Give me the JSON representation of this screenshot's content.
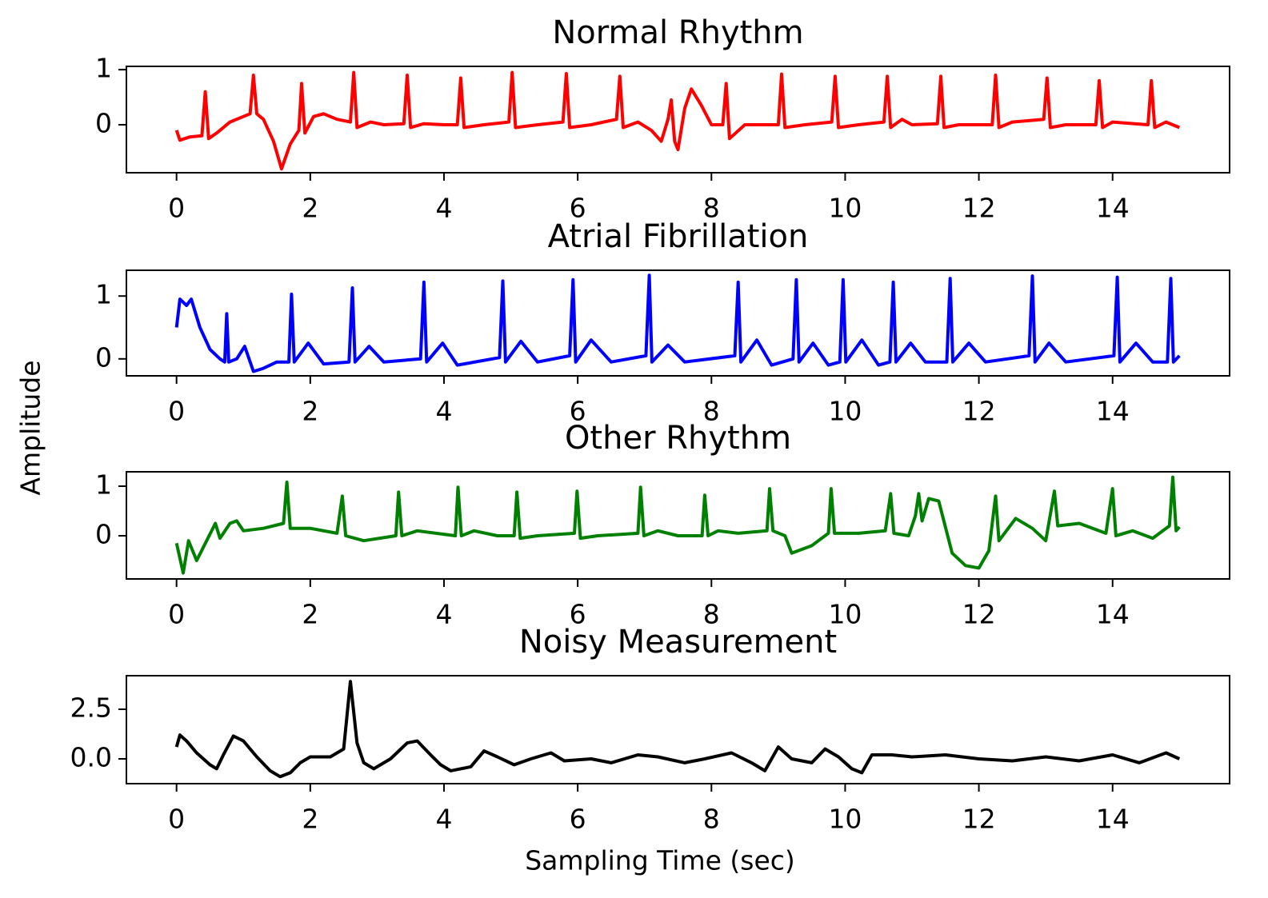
{
  "chart_data": [
    {
      "type": "line",
      "title": "Normal Rhythm",
      "x": [
        0,
        0.05,
        0.2,
        0.38,
        0.43,
        0.48,
        0.6,
        0.8,
        1.0,
        1.1,
        1.15,
        1.2,
        1.3,
        1.45,
        1.57,
        1.7,
        1.83,
        1.87,
        1.92,
        2.05,
        2.2,
        2.4,
        2.6,
        2.65,
        2.7,
        2.9,
        3.1,
        3.4,
        3.45,
        3.5,
        3.7,
        4.0,
        4.2,
        4.25,
        4.3,
        4.6,
        4.97,
        5.02,
        5.07,
        5.4,
        5.78,
        5.83,
        5.88,
        6.2,
        6.58,
        6.63,
        6.68,
        6.9,
        7.1,
        7.25,
        7.35,
        7.4,
        7.45,
        7.5,
        7.6,
        7.7,
        7.85,
        8.0,
        8.17,
        8.22,
        8.27,
        8.5,
        9.0,
        9.05,
        9.1,
        9.4,
        9.8,
        9.85,
        9.9,
        10.2,
        10.58,
        10.63,
        10.68,
        10.85,
        11.0,
        11.38,
        11.43,
        11.48,
        11.7,
        12.2,
        12.25,
        12.3,
        12.5,
        12.97,
        13.02,
        13.07,
        13.3,
        13.75,
        13.8,
        13.85,
        14.0,
        14.53,
        14.58,
        14.63,
        14.8,
        15.0
      ],
      "series": [
        {
          "color": "#ff0000",
          "values": [
            -0.1,
            -0.28,
            -0.22,
            -0.2,
            0.6,
            -0.25,
            -0.15,
            0.05,
            0.15,
            0.2,
            0.9,
            0.2,
            0.1,
            -0.3,
            -0.8,
            -0.35,
            -0.1,
            0.75,
            -0.15,
            0.15,
            0.2,
            0.1,
            0.05,
            0.95,
            -0.05,
            0.05,
            0,
            0.02,
            0.9,
            -0.05,
            0.02,
            0,
            0,
            0.85,
            -0.05,
            0,
            0.05,
            0.95,
            -0.05,
            0,
            0.05,
            0.93,
            -0.05,
            0,
            0.1,
            0.88,
            -0.05,
            0.05,
            -0.1,
            -0.3,
            0.1,
            0.45,
            -0.3,
            -0.45,
            0.3,
            0.65,
            0.35,
            0,
            0,
            0.75,
            -0.25,
            0,
            0,
            0.92,
            -0.05,
            0,
            0.05,
            0.88,
            -0.05,
            0,
            0.05,
            0.88,
            -0.05,
            0.1,
            0,
            0.02,
            0.88,
            -0.05,
            0,
            0,
            0.9,
            -0.05,
            0.05,
            0.1,
            0.85,
            -0.05,
            0,
            0,
            0.8,
            -0.05,
            0.05,
            0,
            0.8,
            -0.05,
            0.05,
            -0.05
          ]
        }
      ],
      "xlim": [
        -0.75,
        15.75
      ],
      "xticks": [
        0,
        2,
        4,
        6,
        8,
        10,
        12,
        14
      ],
      "ylim": [
        -0.87,
        1.06
      ],
      "yticks": [
        0,
        1
      ]
    },
    {
      "type": "line",
      "title": "Atrial Fibrillation",
      "x": [
        0,
        0.05,
        0.15,
        0.22,
        0.35,
        0.5,
        0.65,
        0.72,
        0.75,
        0.78,
        0.9,
        1.02,
        1.15,
        1.3,
        1.5,
        1.68,
        1.72,
        1.76,
        1.97,
        2.2,
        2.58,
        2.63,
        2.67,
        2.88,
        3.1,
        3.65,
        3.7,
        3.74,
        3.98,
        4.2,
        4.83,
        4.88,
        4.92,
        5.15,
        5.4,
        5.88,
        5.93,
        5.97,
        6.2,
        6.5,
        7.02,
        7.07,
        7.11,
        7.35,
        7.6,
        8.35,
        8.4,
        8.44,
        8.68,
        8.9,
        9.22,
        9.27,
        9.31,
        9.52,
        9.75,
        9.92,
        9.97,
        10.01,
        10.25,
        10.5,
        10.67,
        10.72,
        10.76,
        10.98,
        11.2,
        11.52,
        11.57,
        11.61,
        11.85,
        12.1,
        12.75,
        12.8,
        12.84,
        13.05,
        13.3,
        14.02,
        14.07,
        14.11,
        14.35,
        14.6,
        14.82,
        14.87,
        14.91,
        15.0
      ],
      "series": [
        {
          "color": "#0000ff",
          "values": [
            0.5,
            0.95,
            0.85,
            0.95,
            0.5,
            0.15,
            0.0,
            -0.05,
            0.72,
            -0.05,
            0.0,
            0.2,
            -0.2,
            -0.15,
            -0.05,
            -0.05,
            1.03,
            -0.05,
            0.25,
            -0.08,
            -0.05,
            1.13,
            -0.05,
            0.2,
            -0.05,
            0.0,
            1.22,
            -0.05,
            0.25,
            -0.1,
            0.02,
            1.24,
            -0.05,
            0.28,
            -0.05,
            0.05,
            1.26,
            -0.05,
            0.3,
            -0.05,
            0.05,
            1.33,
            -0.05,
            0.22,
            -0.05,
            0.05,
            1.22,
            -0.05,
            0.3,
            -0.1,
            0.0,
            1.26,
            -0.05,
            0.25,
            -0.1,
            -0.05,
            1.26,
            -0.05,
            0.3,
            -0.1,
            -0.05,
            1.22,
            -0.05,
            0.25,
            -0.05,
            -0.05,
            1.28,
            -0.05,
            0.25,
            -0.05,
            0.05,
            1.32,
            -0.05,
            0.25,
            -0.05,
            0.05,
            1.3,
            -0.05,
            0.25,
            -0.05,
            -0.05,
            1.28,
            -0.05,
            0.05
          ]
        }
      ],
      "xlim": [
        -0.75,
        15.75
      ],
      "xticks": [
        0,
        2,
        4,
        6,
        8,
        10,
        12,
        14
      ],
      "ylim": [
        -0.27,
        1.41
      ],
      "yticks": [
        0,
        1
      ]
    },
    {
      "type": "line",
      "title": "Other Rhythm",
      "x": [
        0,
        0.1,
        0.18,
        0.3,
        0.45,
        0.58,
        0.65,
        0.8,
        0.9,
        1.0,
        1.3,
        1.6,
        1.65,
        1.7,
        2.0,
        2.4,
        2.48,
        2.53,
        2.8,
        3.28,
        3.32,
        3.37,
        3.6,
        4.17,
        4.21,
        4.26,
        4.45,
        4.8,
        5.05,
        5.09,
        5.14,
        5.4,
        5.95,
        5.99,
        6.04,
        6.3,
        6.9,
        6.94,
        6.99,
        7.2,
        7.5,
        7.86,
        7.9,
        7.95,
        8.1,
        8.4,
        8.83,
        8.87,
        8.92,
        9.1,
        9.2,
        9.5,
        9.75,
        9.79,
        9.84,
        10.2,
        10.6,
        10.68,
        10.73,
        10.95,
        11.05,
        11.1,
        11.15,
        11.25,
        11.4,
        11.6,
        11.8,
        12.0,
        12.15,
        12.25,
        12.3,
        12.55,
        12.8,
        13.0,
        13.13,
        13.18,
        13.5,
        13.9,
        14.0,
        14.05,
        14.3,
        14.6,
        14.85,
        14.9,
        14.95,
        15.0
      ],
      "series": [
        {
          "color": "#008000",
          "values": [
            -0.15,
            -0.75,
            -0.1,
            -0.5,
            -0.1,
            0.25,
            -0.05,
            0.25,
            0.3,
            0.1,
            0.15,
            0.25,
            1.08,
            0.15,
            0.15,
            0.05,
            0.8,
            0,
            -0.1,
            0,
            0.88,
            0,
            0.1,
            0,
            0.98,
            0,
            0.1,
            0,
            0,
            0.88,
            -0.05,
            0,
            0.05,
            0.9,
            -0.05,
            0,
            0.05,
            0.98,
            0,
            0.1,
            0,
            0,
            0.82,
            0,
            0.1,
            0.05,
            0.1,
            0.95,
            0.1,
            0,
            -0.35,
            -0.2,
            0.05,
            0.95,
            0.05,
            0.05,
            0.1,
            0.85,
            0.05,
            0,
            0.4,
            0.85,
            0.3,
            0.75,
            0.7,
            -0.35,
            -0.6,
            -0.65,
            -0.3,
            0.8,
            -0.1,
            0.35,
            0.15,
            -0.1,
            0.9,
            0.2,
            0.25,
            0.05,
            0.95,
            0,
            0.1,
            -0.05,
            0.2,
            1.18,
            0.1,
            0.18
          ]
        }
      ],
      "xlim": [
        -0.75,
        15.75
      ],
      "xticks": [
        0,
        2,
        4,
        6,
        8,
        10,
        12,
        14
      ],
      "ylim": [
        -0.87,
        1.29
      ],
      "yticks": [
        0,
        1
      ]
    },
    {
      "type": "line",
      "title": "Noisy Measurement",
      "x": [
        0,
        0.05,
        0.15,
        0.3,
        0.5,
        0.6,
        0.7,
        0.85,
        1.0,
        1.2,
        1.4,
        1.55,
        1.7,
        1.85,
        2.0,
        2.3,
        2.5,
        2.6,
        2.7,
        2.8,
        2.95,
        3.2,
        3.45,
        3.6,
        3.8,
        3.95,
        4.1,
        4.4,
        4.6,
        4.8,
        5.05,
        5.3,
        5.6,
        5.8,
        6.2,
        6.5,
        6.9,
        7.2,
        7.6,
        7.9,
        8.3,
        8.6,
        8.8,
        9.0,
        9.2,
        9.5,
        9.7,
        9.9,
        10.1,
        10.25,
        10.4,
        10.7,
        11.0,
        11.5,
        12.0,
        12.5,
        13.0,
        13.5,
        14.0,
        14.4,
        14.8,
        15.0
      ],
      "series": [
        {
          "color": "#000000",
          "values": [
            0.6,
            1.2,
            0.9,
            0.3,
            -0.3,
            -0.5,
            0.2,
            1.15,
            0.9,
            0.1,
            -0.6,
            -0.9,
            -0.7,
            -0.2,
            0.1,
            0.1,
            0.5,
            3.9,
            0.8,
            -0.2,
            -0.5,
            0,
            0.8,
            0.9,
            0.2,
            -0.3,
            -0.6,
            -0.4,
            0.4,
            0.1,
            -0.3,
            0,
            0.3,
            -0.1,
            0,
            -0.2,
            0.2,
            0.1,
            -0.2,
            0,
            0.3,
            -0.2,
            -0.6,
            0.6,
            0,
            -0.2,
            0.5,
            0.1,
            -0.5,
            -0.7,
            0.2,
            0.2,
            0.1,
            0.2,
            0,
            -0.1,
            0.1,
            -0.1,
            0.2,
            -0.2,
            0.3,
            0
          ]
        }
      ],
      "xlim": [
        -0.75,
        15.75
      ],
      "xticks": [
        0,
        2,
        4,
        6,
        8,
        10,
        12,
        14
      ],
      "ylim": [
        -1.25,
        4.19
      ],
      "yticks": [
        {
          "value": 0,
          "label": "0.0"
        },
        2.5
      ]
    }
  ],
  "ylabel": "Amplitude",
  "xlabel": "Sampling Time (sec)"
}
